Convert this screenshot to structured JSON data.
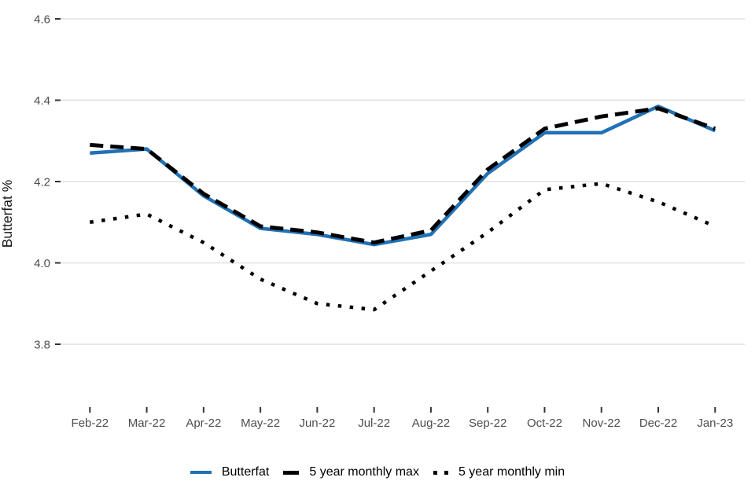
{
  "chart_data": {
    "type": "line",
    "title": "",
    "xlabel": "",
    "ylabel": "Butterfat %",
    "categories": [
      "Feb-22",
      "Mar-22",
      "Apr-22",
      "May-22",
      "Jun-22",
      "Jul-22",
      "Aug-22",
      "Sep-22",
      "Oct-22",
      "Nov-22",
      "Dec-22",
      "Jan-23"
    ],
    "y_ticks": [
      3.8,
      4.0,
      4.2,
      4.4,
      4.6
    ],
    "ylim": [
      3.65,
      4.65
    ],
    "grid": "horizontal-only",
    "legend_position": "bottom-center",
    "series": [
      {
        "name": "Butterfat",
        "style": "solid",
        "color": "#2171b5",
        "values": [
          4.27,
          4.28,
          4.165,
          4.085,
          4.07,
          4.045,
          4.07,
          4.22,
          4.32,
          4.32,
          4.385,
          4.325
        ]
      },
      {
        "name": "5 year monthly max",
        "style": "dashed",
        "color": "#000000",
        "values": [
          4.29,
          4.28,
          4.17,
          4.09,
          4.075,
          4.05,
          4.08,
          4.23,
          4.33,
          4.36,
          4.38,
          4.33
        ]
      },
      {
        "name": "5 year monthly min",
        "style": "dotted",
        "color": "#000000",
        "values": [
          4.1,
          4.12,
          4.05,
          3.96,
          3.9,
          3.885,
          3.98,
          4.075,
          4.18,
          4.195,
          4.15,
          4.09
        ]
      }
    ]
  },
  "colors": {
    "background": "#ffffff",
    "grid": "#e4e4e4",
    "tick_mark": "#333333",
    "tick_text": "#4d4d4d",
    "axis_title": "#1a1a1a",
    "legend_text": "#000000"
  }
}
